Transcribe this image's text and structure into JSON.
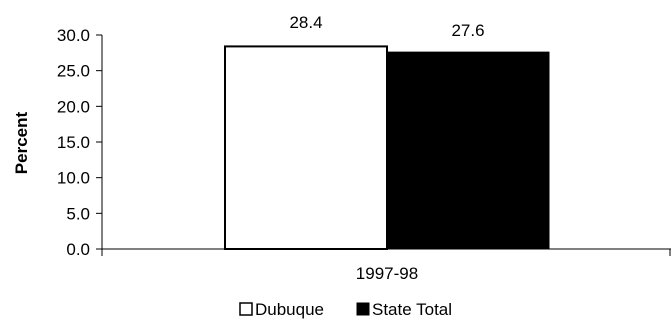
{
  "chart_data": {
    "type": "bar",
    "categories": [
      "1997-98"
    ],
    "series": [
      {
        "name": "Dubuque",
        "values": [
          28.4
        ],
        "color": "#ffffff"
      },
      {
        "name": "State Total",
        "values": [
          27.6
        ],
        "color": "#000000"
      }
    ],
    "ylabel": "Percent",
    "xlabel": "",
    "ylim": [
      0,
      30
    ],
    "yticks": [
      "0.0",
      "5.0",
      "10.0",
      "15.0",
      "20.0",
      "25.0",
      "30.0"
    ],
    "data_labels": [
      "28.4",
      "27.6"
    ],
    "legend_position": "bottom",
    "grid": false
  }
}
